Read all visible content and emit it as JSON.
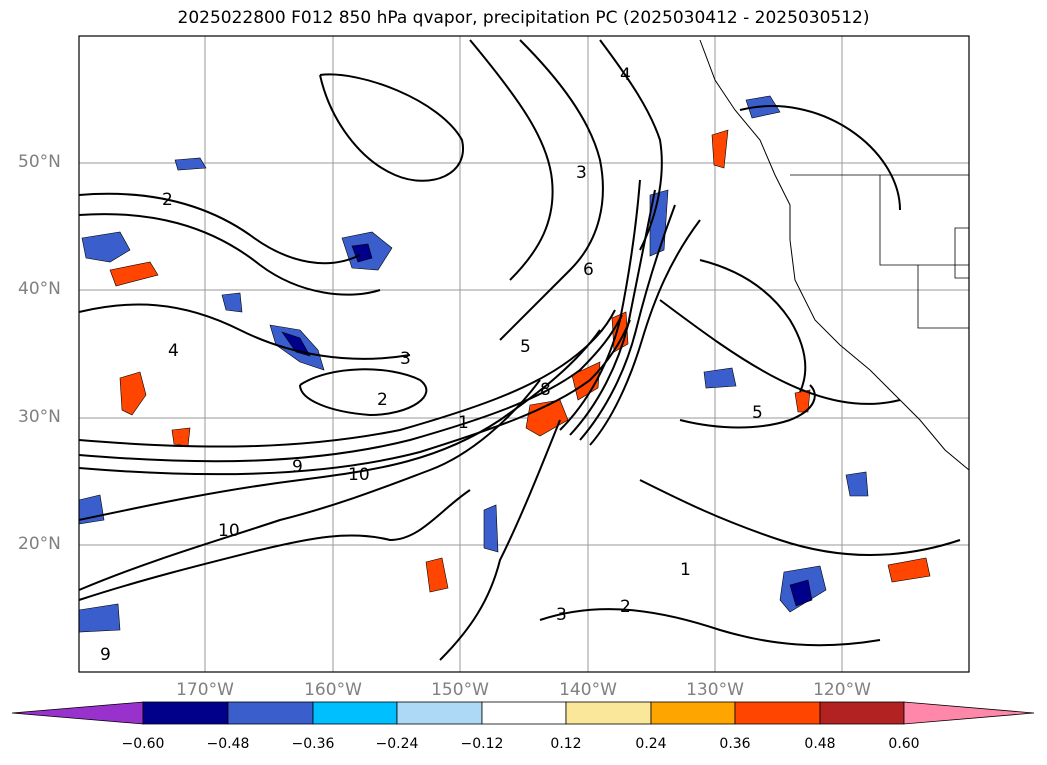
{
  "title": "2025022800 F012 850 hPa qvapor, precipitation PC (2025030412 - 2025030512)",
  "map": {
    "lat_labels": [
      "50°N",
      "40°N",
      "30°N",
      "20°N"
    ],
    "lon_labels": [
      "170°W",
      "160°W",
      "150°W",
      "140°W",
      "130°W",
      "120°W"
    ],
    "contour_labels": [
      "2",
      "3",
      "4",
      "5",
      "6",
      "8",
      "9",
      "10",
      "1",
      "2",
      "3",
      "4",
      "5",
      "1",
      "10",
      "9",
      "2",
      "3"
    ]
  },
  "colorbar": {
    "tick_labels": [
      "−0.60",
      "−0.48",
      "−0.36",
      "−0.24",
      "−0.12",
      "0.12",
      "0.24",
      "0.36",
      "0.48",
      "0.60"
    ],
    "colors": [
      "#9932cc",
      "#00008b",
      "#3a5fcd",
      "#00bfff",
      "#add8f6",
      "#ffffff",
      "#fbe79a",
      "#ffa500",
      "#ff4500",
      "#b22222",
      "#ff88aa"
    ],
    "under_color": "#9932cc",
    "over_color": "#ff88aa"
  }
}
